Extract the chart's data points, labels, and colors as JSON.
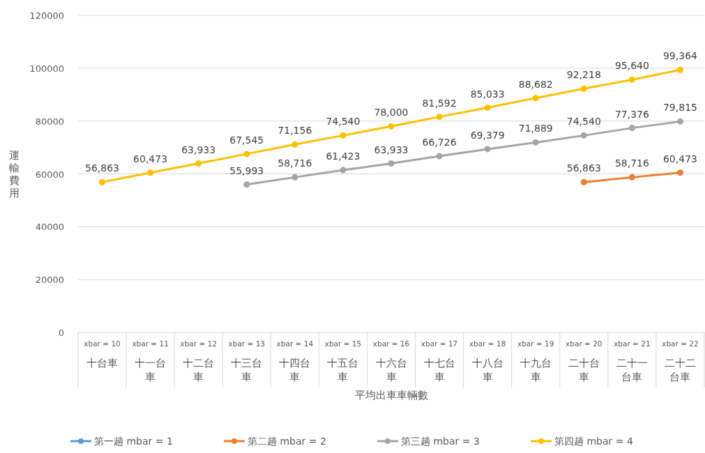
{
  "chart_data": {
    "type": "line",
    "xlabel": "平均出車車輛數",
    "ylabel": "運輸費用",
    "categories": [
      "xbar = 10\n十台車",
      "xbar = 11\n十一台車",
      "xbar = 12\n十二台車",
      "xbar = 13\n十三台車",
      "xbar = 14\n十四台車",
      "xbar = 15\n十五台車",
      "xbar = 16\n十六台車",
      "xbar = 17\n十七台車",
      "xbar = 18\n十八台車",
      "xbar = 19\n十九台車",
      "xbar = 20\n二十台車",
      "xbar = 21\n二十一台車",
      "xbar = 22\n二十二台車"
    ],
    "ylim": [
      0,
      120000
    ],
    "yticks": [
      0,
      20000,
      40000,
      60000,
      80000,
      100000,
      120000
    ],
    "grid": "y",
    "legend": "bottom",
    "marker": "circle",
    "line_style": "solid",
    "series": [
      {
        "name": "第一趟 mbar = 1",
        "color": "#5b9bd5",
        "values": [
          null,
          null,
          null,
          null,
          null,
          null,
          null,
          null,
          null,
          null,
          null,
          null,
          null
        ]
      },
      {
        "name": "第二趟 mbar = 2",
        "color": "#ed7d31",
        "values": [
          null,
          null,
          null,
          null,
          null,
          null,
          null,
          null,
          null,
          null,
          56863,
          58716,
          60473
        ],
        "value_labels": [
          null,
          null,
          null,
          null,
          null,
          null,
          null,
          null,
          null,
          null,
          "56,863",
          "58,716",
          "60,473"
        ]
      },
      {
        "name": "第三趟 mbar = 3",
        "color": "#a5a5a5",
        "values": [
          null,
          null,
          null,
          55993,
          58716,
          61423,
          63933,
          66726,
          69379,
          71889,
          74540,
          77376,
          79815
        ],
        "value_labels": [
          null,
          null,
          null,
          "55,993",
          "58,716",
          "61,423",
          "63,933",
          "66,726",
          "69,379",
          "71,889",
          "74,540",
          "77,376",
          "79,815"
        ]
      },
      {
        "name": "第四趟 mbar = 4",
        "color": "#ffc000",
        "values": [
          56863,
          60473,
          63933,
          67545,
          71156,
          74540,
          78000,
          81592,
          85033,
          88682,
          92218,
          95640,
          99364
        ],
        "value_labels": [
          "56,863",
          "60,473",
          "63,933",
          "67,545",
          "71,156",
          "74,540",
          "78,000",
          "81,592",
          "85,033",
          "88,682",
          "92,218",
          "95,640",
          "99,364"
        ]
      }
    ]
  }
}
